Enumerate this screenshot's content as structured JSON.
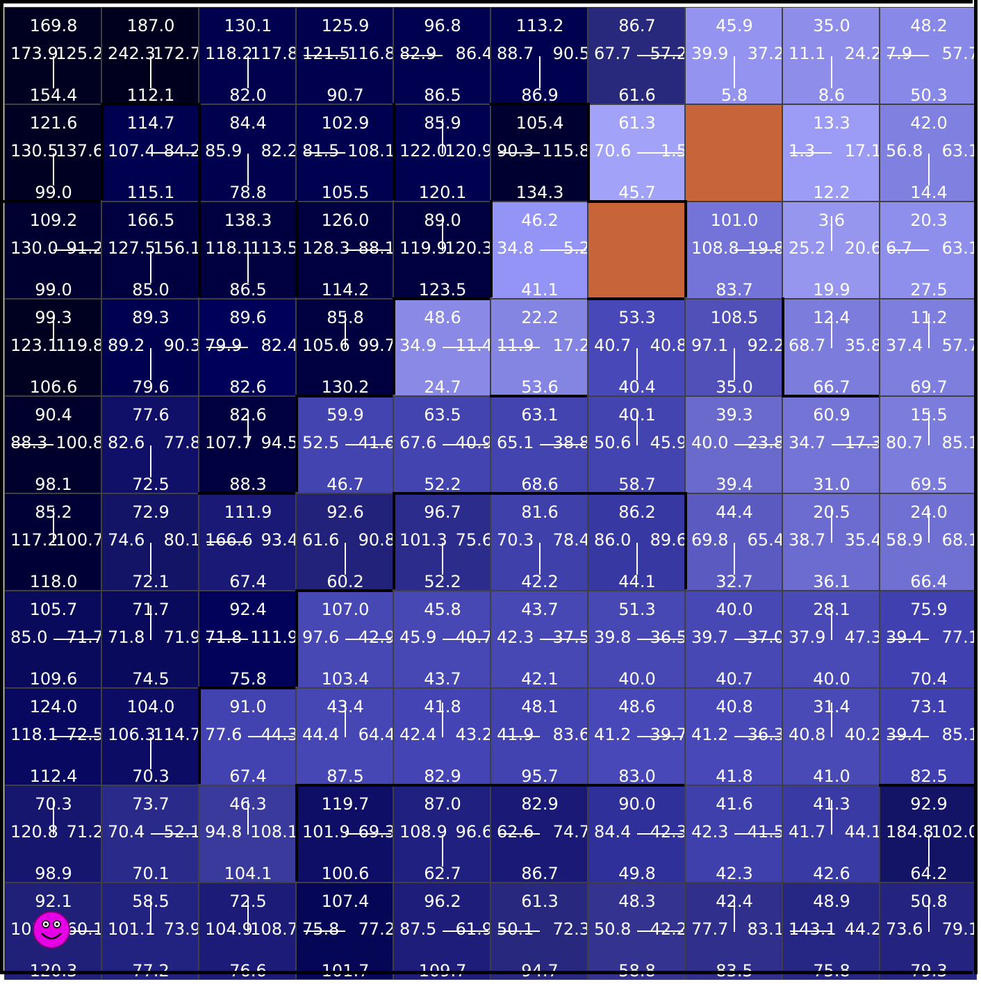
{
  "grid": {
    "rows": 10,
    "cols": 10,
    "cells": [
      [
        "169.8",
        "154.4",
        "173.9",
        "125.2",
        "#000020",
        "S"
      ],
      [
        "187.0",
        "112.1",
        "242.3",
        "172.7",
        "#00001e",
        "S"
      ],
      [
        "130.1",
        "82.0",
        "118.2",
        "117.8",
        "#00004e",
        "S"
      ],
      [
        "125.9",
        "90.7",
        "121.5",
        "116.8",
        "#00004e",
        "W"
      ],
      [
        "96.8",
        "86.5",
        "82.9",
        "86.4",
        "#000050",
        "W"
      ],
      [
        "113.2",
        "86.9",
        "88.7",
        "90.5",
        "#000050",
        "S"
      ],
      [
        "86.7",
        "61.6",
        "67.7",
        "57.2",
        "#28287d",
        "E"
      ],
      [
        "45.9",
        "5.8",
        "39.9",
        "37.2",
        "#9494f0",
        "S"
      ],
      [
        "35.0",
        "8.6",
        "11.1",
        "24.2",
        "#8e8eea",
        "S"
      ],
      [
        "48.2",
        "50.3",
        "7.9",
        "57.7",
        "#8888e8",
        "W"
      ],
      [
        "121.6",
        "99.0",
        "130.5",
        "137.6",
        "#000022",
        "S"
      ],
      [
        "114.7",
        "115.1",
        "107.4",
        "84.2",
        "#000050",
        "E"
      ],
      [
        "84.4",
        "78.8",
        "85.9",
        "82.2",
        "#00004e",
        "S"
      ],
      [
        "102.9",
        "105.5",
        "81.5",
        "108.1",
        "#000050",
        "W"
      ],
      [
        "85.9",
        "120.1",
        "122.0",
        "120.9",
        "#000050",
        "N"
      ],
      [
        "105.4",
        "134.3",
        "90.3",
        "115.8",
        "#000030",
        "W"
      ],
      [
        "61.3",
        "45.7",
        "70.6",
        "1.5",
        "#a2a2f8",
        "E"
      ],
      [
        "",
        "",
        "",
        "",
        "#c8643a",
        "X"
      ],
      [
        "13.3",
        "12.2",
        "1.3",
        "17.1",
        "#9c9cf6",
        "W"
      ],
      [
        "42.0",
        "14.4",
        "56.8",
        "63.1",
        "#8080e0",
        "S"
      ],
      [
        "109.2",
        "99.0",
        "130.0",
        "91.2",
        "#000030",
        "E"
      ],
      [
        "166.5",
        "85.0",
        "127.5",
        "156.1",
        "#000040",
        "S"
      ],
      [
        "138.3",
        "86.5",
        "118.1",
        "113.5",
        "#000040",
        "S"
      ],
      [
        "126.0",
        "114.2",
        "128.3",
        "88.1",
        "#000040",
        "E"
      ],
      [
        "89.0",
        "123.5",
        "119.9",
        "120.3",
        "#000040",
        "N"
      ],
      [
        "46.2",
        "41.1",
        "34.8",
        "5.2",
        "#9494f6",
        "E"
      ],
      [
        "",
        "",
        "",
        "",
        "#c8643a",
        "X"
      ],
      [
        "101.0",
        "83.7",
        "108.8",
        "19.8",
        "#7474d8",
        "E"
      ],
      [
        "3.6",
        "19.9",
        "25.2",
        "20.6",
        "#9696ee",
        "N"
      ],
      [
        "20.3",
        "27.5",
        "6.7",
        "63.1",
        "#8e8eec",
        "W"
      ],
      [
        "99.3",
        "106.6",
        "123.1",
        "119.8",
        "#000020",
        "N"
      ],
      [
        "89.3",
        "79.6",
        "89.2",
        "90.3",
        "#000050",
        "S"
      ],
      [
        "89.6",
        "82.6",
        "79.9",
        "82.4",
        "#00005a",
        "W"
      ],
      [
        "85.8",
        "130.2",
        "105.6",
        "99.7",
        "#000040",
        "N"
      ],
      [
        "48.6",
        "24.7",
        "34.9",
        "11.4",
        "#8a8ae6",
        "E"
      ],
      [
        "22.2",
        "53.6",
        "11.9",
        "17.2",
        "#8484e2",
        "W"
      ],
      [
        "53.3",
        "40.4",
        "40.7",
        "40.8",
        "#4848b8",
        "S"
      ],
      [
        "108.5",
        "35.0",
        "97.1",
        "92.2",
        "#5050b8",
        "S"
      ],
      [
        "12.4",
        "66.7",
        "68.7",
        "35.8",
        "#7c7cdc",
        "N"
      ],
      [
        "11.2",
        "69.7",
        "37.4",
        "57.7",
        "#7e7ede",
        "N"
      ],
      [
        "90.4",
        "98.1",
        "88.3",
        "100.8",
        "#00002c",
        "W"
      ],
      [
        "77.6",
        "72.5",
        "82.6",
        "77.8",
        "#101068",
        "S"
      ],
      [
        "82.6",
        "88.3",
        "107.7",
        "94.5",
        "#000040",
        "N"
      ],
      [
        "59.9",
        "46.7",
        "52.5",
        "41.6",
        "#4444b0",
        "E"
      ],
      [
        "63.5",
        "52.2",
        "67.6",
        "40.9",
        "#4444b0",
        "E"
      ],
      [
        "63.1",
        "68.6",
        "65.1",
        "38.8",
        "#4444b0",
        "E"
      ],
      [
        "40.1",
        "58.7",
        "50.6",
        "45.9",
        "#4444b0",
        "N"
      ],
      [
        "39.3",
        "39.4",
        "40.0",
        "23.8",
        "#6a6acc",
        "E"
      ],
      [
        "60.9",
        "31.0",
        "34.7",
        "17.3",
        "#7474d6",
        "E"
      ],
      [
        "15.5",
        "69.5",
        "80.7",
        "85.1",
        "#7c7cdc",
        "N"
      ],
      [
        "85.2",
        "118.0",
        "117.2",
        "100.7",
        "#000036",
        "N"
      ],
      [
        "72.9",
        "72.1",
        "74.6",
        "80.1",
        "#141466",
        "S"
      ],
      [
        "111.9",
        "67.4",
        "166.6",
        "93.4",
        "#1a1a76",
        "W"
      ],
      [
        "92.6",
        "60.2",
        "61.6",
        "90.8",
        "#22227a",
        "S"
      ],
      [
        "96.7",
        "52.2",
        "101.3",
        "75.6",
        "#2c2c8c",
        "S"
      ],
      [
        "81.6",
        "42.2",
        "70.3",
        "78.4",
        "#4040aa",
        "S"
      ],
      [
        "86.2",
        "44.1",
        "86.0",
        "89.6",
        "#3838a2",
        "S"
      ],
      [
        "44.4",
        "32.7",
        "69.8",
        "65.4",
        "#5a5ac0",
        "S"
      ],
      [
        "20.5",
        "36.1",
        "38.7",
        "35.4",
        "#6c6cd0",
        "N"
      ],
      [
        "24.0",
        "66.4",
        "58.9",
        "68.1",
        "#7070d2",
        "N"
      ],
      [
        "105.7",
        "109.6",
        "85.0",
        "71.7",
        "#0a0a5c",
        "E"
      ],
      [
        "71.7",
        "74.5",
        "71.8",
        "71.9",
        "#0a0a5c",
        "N"
      ],
      [
        "92.4",
        "75.8",
        "71.8",
        "111.9",
        "#02025a",
        "W"
      ],
      [
        "107.0",
        "103.4",
        "97.6",
        "42.9",
        "#4848b4",
        "E"
      ],
      [
        "45.8",
        "43.7",
        "45.9",
        "40.7",
        "#4848b4",
        "E"
      ],
      [
        "43.7",
        "42.1",
        "42.3",
        "37.5",
        "#4848b4",
        "E"
      ],
      [
        "51.3",
        "40.0",
        "39.8",
        "36.5",
        "#4848b4",
        "E"
      ],
      [
        "40.0",
        "40.7",
        "39.7",
        "37.0",
        "#4848b4",
        "E"
      ],
      [
        "28.1",
        "40.0",
        "37.9",
        "47.3",
        "#4a4ab6",
        "N"
      ],
      [
        "75.9",
        "70.4",
        "39.4",
        "77.1",
        "#4040b0",
        "W"
      ],
      [
        "124.0",
        "112.4",
        "118.1",
        "72.5",
        "#080860",
        "E"
      ],
      [
        "104.0",
        "70.3",
        "106.3",
        "114.7",
        "#0c0c64",
        "S"
      ],
      [
        "91.0",
        "67.4",
        "77.6",
        "44.3",
        "#4242b0",
        "E"
      ],
      [
        "43.4",
        "87.5",
        "44.4",
        "64.4",
        "#4646b4",
        "N"
      ],
      [
        "41.8",
        "82.9",
        "42.4",
        "43.2",
        "#4444b4",
        "N"
      ],
      [
        "48.1",
        "95.7",
        "41.9",
        "83.6",
        "#4242b0",
        "W"
      ],
      [
        "48.6",
        "83.0",
        "41.2",
        "39.7",
        "#4848b8",
        "E"
      ],
      [
        "40.8",
        "41.8",
        "41.2",
        "36.3",
        "#4848b8",
        "E"
      ],
      [
        "31.4",
        "41.0",
        "40.8",
        "40.2",
        "#4a4ab6",
        "N"
      ],
      [
        "73.1",
        "82.5",
        "39.4",
        "85.1",
        "#4040b0",
        "W"
      ],
      [
        "70.3",
        "98.9",
        "120.8",
        "71.2",
        "#16166e",
        "N"
      ],
      [
        "73.7",
        "70.1",
        "70.4",
        "52.1",
        "#2a2a8a",
        "E"
      ],
      [
        "46.3",
        "104.1",
        "94.8",
        "108.1",
        "#3a3a9c",
        "N"
      ],
      [
        "119.7",
        "100.6",
        "101.9",
        "69.3",
        "#0e0e66",
        "E"
      ],
      [
        "87.0",
        "62.7",
        "108.9",
        "96.6",
        "#202080",
        "S"
      ],
      [
        "82.9",
        "86.7",
        "62.6",
        "74.7",
        "#1a1a76",
        "W"
      ],
      [
        "90.0",
        "49.8",
        "84.4",
        "42.3",
        "#30309a",
        "E"
      ],
      [
        "41.6",
        "42.3",
        "42.3",
        "41.5",
        "#4040ac",
        "E"
      ],
      [
        "41.3",
        "42.6",
        "41.7",
        "44.1",
        "#3a3aa4",
        "N"
      ],
      [
        "92.9",
        "64.2",
        "184.8",
        "102.0",
        "#141466",
        "S"
      ],
      [
        "92.1",
        "120.3",
        "101.1",
        "60.1",
        "#202078",
        "E"
      ],
      [
        "58.5",
        "77.2",
        "101.1",
        "73.9",
        "#222280",
        "N"
      ],
      [
        "72.5",
        "76.6",
        "104.9",
        "108.7",
        "#1c1c78",
        "N"
      ],
      [
        "107.4",
        "101.7",
        "75.8",
        "77.2",
        "#060656",
        "W"
      ],
      [
        "96.2",
        "109.7",
        "87.5",
        "61.9",
        "#1e1e7a",
        "E"
      ],
      [
        "61.3",
        "94.7",
        "50.1",
        "72.3",
        "#28287e",
        "W"
      ],
      [
        "48.3",
        "58.8",
        "50.8",
        "42.2",
        "#343490",
        "E"
      ],
      [
        "42.4",
        "83.5",
        "77.7",
        "83.1",
        "#30308c",
        "N"
      ],
      [
        "48.9",
        "75.8",
        "143.1",
        "44.2",
        "#262684",
        "W"
      ],
      [
        "50.8",
        "79.3",
        "73.6",
        "79.1",
        "#242480",
        "N"
      ]
    ]
  },
  "agent": {
    "icon": "smiley-face-icon",
    "row": 9,
    "col": 0,
    "color": "#e600e6"
  },
  "walls": [
    [
      2.7,
      0.0,
      0.0,
      10.0,
      "v"
    ],
    [
      10.0,
      0.0,
      0.0,
      10.0,
      "v"
    ],
    [
      0.0,
      0.0,
      0.0,
      10.0,
      "h"
    ],
    [
      0.0,
      10.0,
      0.0,
      10.0,
      "h"
    ],
    [
      1.0,
      1.0,
      0.0,
      1.05,
      "v"
    ],
    [
      1.0,
      1.0,
      1.05,
      2.05,
      "h"
    ],
    [
      2.0,
      2.0,
      0.0,
      1.05,
      "v"
    ],
    [
      6.0,
      6.0,
      1.05,
      2.05,
      "h"
    ],
    [
      6.0,
      6.0,
      2.05,
      3.05,
      "h"
    ],
    [
      6.0,
      6.0,
      3.05,
      4.05,
      "h"
    ],
    [
      4.05,
      4.05,
      4.0,
      4.0,
      "v"
    ]
  ]
}
